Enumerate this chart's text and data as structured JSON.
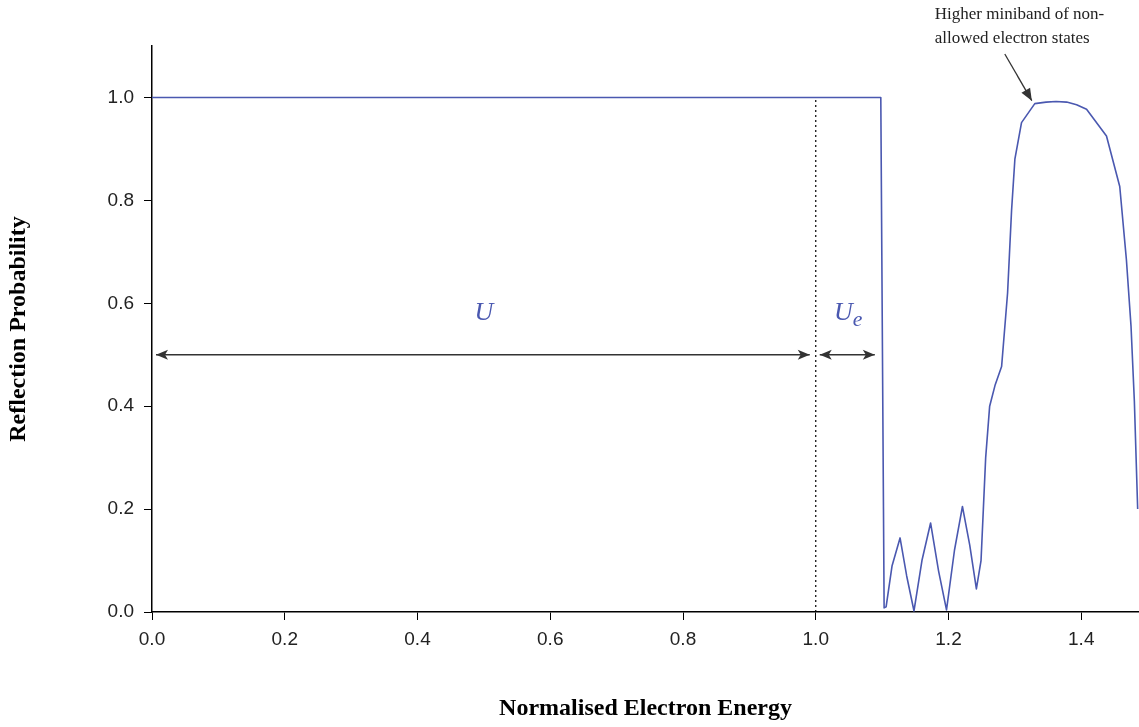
{
  "chart_data": {
    "type": "line",
    "xlabel": "Normalised Electron Energy",
    "ylabel": "Reflection Probability",
    "xlim": [
      0,
      1.487
    ],
    "ylim": [
      0,
      1.1
    ],
    "xticks": [
      {
        "value": 0,
        "label": "0.0"
      },
      0.2,
      0.4,
      0.6,
      0.8,
      {
        "value": 1,
        "label": "1.0"
      },
      1.2,
      1.4
    ],
    "yticks": [
      {
        "value": 0,
        "label": "0.0"
      },
      0.2,
      0.4,
      0.6,
      0.8,
      {
        "value": 1,
        "label": "1.0"
      }
    ],
    "grid": false,
    "legend": false,
    "marker": "none",
    "line_style": "solid",
    "series": [
      {
        "color": "#4a58b0",
        "x": [
          0,
          1.098,
          1.103,
          1.106,
          1.115,
          1.127,
          1.137,
          1.148,
          1.16,
          1.173,
          1.185,
          1.197,
          1.209,
          1.221,
          1.232,
          1.242,
          1.249,
          1.256,
          1.262,
          1.27,
          1.28,
          1.289,
          1.295,
          1.3,
          1.31,
          1.33,
          1.347,
          1.362,
          1.378,
          1.393,
          1.408,
          1.438,
          1.458,
          1.468,
          1.475,
          1.48,
          1.485
        ],
        "values": [
          1.0,
          1.0,
          0.008,
          0.01,
          0.09,
          0.144,
          0.07,
          0.002,
          0.1,
          0.173,
          0.08,
          0.004,
          0.12,
          0.205,
          0.13,
          0.045,
          0.1,
          0.3,
          0.4,
          0.44,
          0.477,
          0.62,
          0.78,
          0.88,
          0.951,
          0.988,
          0.991,
          0.992,
          0.991,
          0.986,
          0.977,
          0.925,
          0.827,
          0.685,
          0.555,
          0.41,
          0.2
        ]
      }
    ],
    "ref_lines": [
      {
        "axis": "x",
        "value": 1.0,
        "color": "#000000",
        "line_style": "dotted"
      }
    ],
    "annotations": [
      "U",
      {
        "text": "U$_{e}$",
        "x": 1.098,
        "y": 0.5
      },
      {
        "text": "Higher miniband of non-allowed electron states",
        "x": 1.33,
        "y": 0.988
      }
    ]
  }
}
